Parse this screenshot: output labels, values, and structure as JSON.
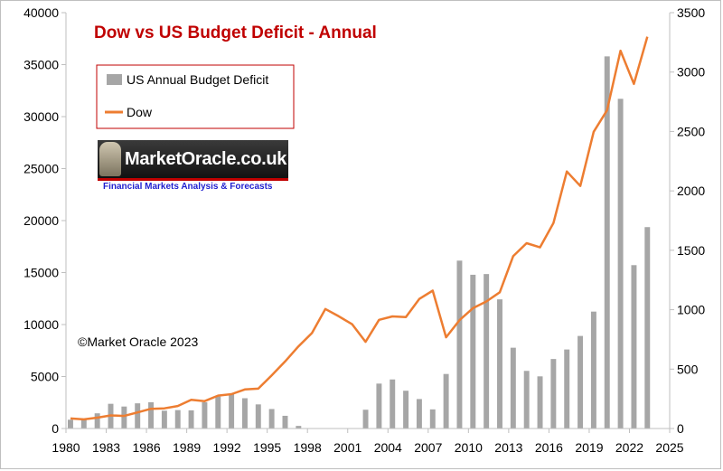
{
  "copyright": "©Market Oracle 2023",
  "logo": {
    "name": "MarketOracle.co.uk",
    "tagline": "Financial Markets Analysis & Forecasts"
  },
  "colors": {
    "title": "#c00000",
    "deficit_bar": "#a6a6a6",
    "dow_line": "#ed7d31",
    "legend_border": "#c00000"
  },
  "chart_data": {
    "type": "bar",
    "title": "Dow vs US Budget Deficit - Annual",
    "legend_placement": "top-left",
    "grid": false,
    "x_axis": {
      "range": [
        1980,
        2025
      ],
      "ticks": [
        1980,
        1983,
        1986,
        1989,
        1992,
        1995,
        1998,
        2001,
        2004,
        2007,
        2010,
        2013,
        2016,
        2019,
        2022,
        2025
      ]
    },
    "y_axis_left": {
      "range": [
        0,
        40000
      ],
      "ticks": [
        0,
        5000,
        10000,
        15000,
        20000,
        25000,
        30000,
        35000,
        40000
      ]
    },
    "y_axis_right": {
      "range": [
        0,
        3500
      ],
      "ticks": [
        0,
        500,
        1000,
        1500,
        2000,
        2500,
        3000,
        3500
      ]
    },
    "series": [
      {
        "name": "US Annual Budget Deficit",
        "type": "bar",
        "axis": "right",
        "x": [
          1980,
          1981,
          1982,
          1983,
          1984,
          1985,
          1986,
          1987,
          1988,
          1989,
          1990,
          1991,
          1992,
          1993,
          1994,
          1995,
          1996,
          1997,
          1998,
          1999,
          2000,
          2001,
          2002,
          2003,
          2004,
          2005,
          2006,
          2007,
          2008,
          2009,
          2010,
          2011,
          2012,
          2013,
          2014,
          2015,
          2016,
          2017,
          2018,
          2019,
          2020,
          2021,
          2022,
          2023
        ],
        "values": [
          74,
          79,
          128,
          208,
          185,
          212,
          221,
          150,
          155,
          153,
          221,
          269,
          290,
          255,
          203,
          164,
          107,
          22,
          0,
          0,
          0,
          0,
          158,
          378,
          413,
          318,
          248,
          161,
          459,
          1413,
          1294,
          1300,
          1087,
          680,
          485,
          439,
          585,
          665,
          779,
          984,
          3132,
          2775,
          1375,
          1695
        ]
      },
      {
        "name": "Dow",
        "type": "line",
        "axis": "left",
        "x": [
          1980,
          1981,
          1982,
          1983,
          1984,
          1985,
          1986,
          1987,
          1988,
          1989,
          1990,
          1991,
          1992,
          1993,
          1994,
          1995,
          1996,
          1997,
          1998,
          1999,
          2000,
          2001,
          2002,
          2003,
          2004,
          2005,
          2006,
          2007,
          2008,
          2009,
          2010,
          2011,
          2012,
          2013,
          2014,
          2015,
          2016,
          2017,
          2018,
          2019,
          2020,
          2021,
          2022,
          2023
        ],
        "values": [
          964,
          875,
          1047,
          1259,
          1212,
          1547,
          1896,
          1939,
          2169,
          2753,
          2634,
          3169,
          3301,
          3754,
          3834,
          5117,
          6448,
          7908,
          9181,
          11497,
          10787,
          10022,
          8342,
          10454,
          10783,
          10718,
          12463,
          13265,
          8776,
          10428,
          11578,
          12218,
          13104,
          16577,
          17823,
          17425,
          19763,
          24719,
          23327,
          28538,
          30606,
          36338,
          33147,
          37690
        ]
      }
    ]
  }
}
